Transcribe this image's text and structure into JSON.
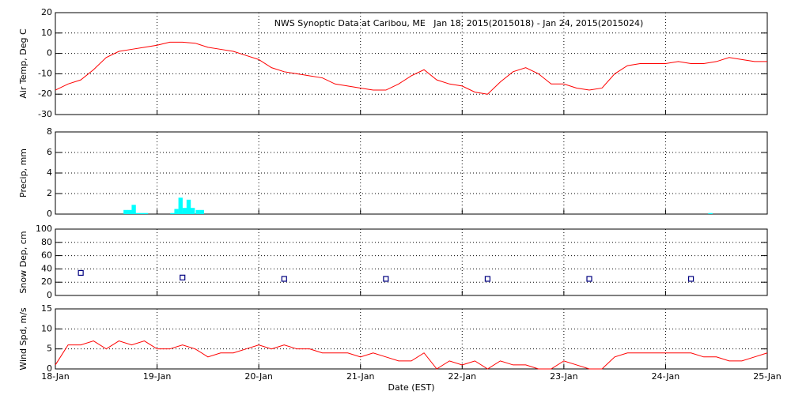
{
  "chart_data": [
    {
      "type": "line",
      "title": "NWS Synoptic Data at Caribou, ME   Jan 18, 2015(2015018) - Jan 24, 2015(2015024)",
      "ylabel": "Air Temp, Deg C",
      "color": "#ff0000",
      "x": [
        18,
        18.125,
        18.25,
        18.375,
        18.5,
        18.625,
        18.75,
        18.875,
        19,
        19.125,
        19.25,
        19.375,
        19.5,
        19.625,
        19.75,
        19.875,
        20,
        20.125,
        20.25,
        20.375,
        20.5,
        20.625,
        20.75,
        20.875,
        21,
        21.125,
        21.25,
        21.375,
        21.5,
        21.625,
        21.75,
        21.875,
        22,
        22.125,
        22.25,
        22.375,
        22.5,
        22.625,
        22.75,
        22.875,
        23,
        23.125,
        23.25,
        23.375,
        23.5,
        23.625,
        23.75,
        23.875,
        24,
        24.125,
        24.25,
        24.375,
        24.5,
        24.625,
        24.75,
        24.875,
        25
      ],
      "values": [
        -18,
        -15,
        -13,
        -8,
        -2,
        1,
        2,
        3,
        4,
        5.5,
        5.5,
        5,
        3,
        2,
        1,
        -1,
        -3,
        -7,
        -9,
        -10,
        -11,
        -12,
        -15,
        -16,
        -17,
        -18,
        -18,
        -15,
        -11,
        -8,
        -13,
        -15,
        -16,
        -19,
        -20,
        -14,
        -9,
        -7,
        -10,
        -15,
        -15,
        -17,
        -18,
        -17,
        -10,
        -6,
        -5,
        -5,
        -5,
        -4,
        -5,
        -5,
        -4,
        -2,
        -3,
        -4,
        -4
      ],
      "xlim": [
        18,
        25
      ],
      "xticks": [
        18,
        19,
        20,
        21,
        22,
        23,
        24,
        25
      ],
      "ylim": [
        -30,
        20
      ],
      "yticks": [
        -30,
        -20,
        -10,
        0,
        10,
        20
      ],
      "grid": true
    },
    {
      "type": "bar",
      "ylabel": "Precip, mm",
      "color": "#00ffff",
      "x": [
        18.67,
        18.71,
        18.75,
        18.79,
        18.83,
        18.87,
        19.13,
        19.17,
        19.21,
        19.25,
        19.29,
        19.33,
        19.38,
        19.42,
        24.42
      ],
      "values": [
        0.4,
        0.4,
        0.9,
        0.1,
        0.1,
        0.1,
        0.1,
        0.5,
        1.6,
        0.6,
        1.4,
        0.6,
        0.4,
        0.4,
        0.1
      ],
      "xlim": [
        18,
        25
      ],
      "xticks": [
        18,
        19,
        20,
        21,
        22,
        23,
        24,
        25
      ],
      "ylim": [
        0,
        8
      ],
      "yticks": [
        0,
        2,
        4,
        6,
        8
      ],
      "grid": true
    },
    {
      "type": "scatter",
      "ylabel": "Snow Dep, cm",
      "color": "#000080",
      "x": [
        18.25,
        19.25,
        20.25,
        21.25,
        22.25,
        23.25,
        24.25
      ],
      "values": [
        34,
        27,
        25,
        25,
        25,
        25,
        25
      ],
      "xlim": [
        18,
        25
      ],
      "xticks": [
        18,
        19,
        20,
        21,
        22,
        23,
        24,
        25
      ],
      "ylim": [
        0,
        100
      ],
      "yticks": [
        0,
        20,
        40,
        60,
        80,
        100
      ],
      "grid": true
    },
    {
      "type": "line",
      "ylabel": "Wind Spd, m/s",
      "xlabel": "Date (EST)",
      "color": "#ff0000",
      "x": [
        18,
        18.125,
        18.25,
        18.375,
        18.5,
        18.625,
        18.75,
        18.875,
        19,
        19.125,
        19.25,
        19.375,
        19.5,
        19.625,
        19.75,
        19.875,
        20,
        20.125,
        20.25,
        20.375,
        20.5,
        20.625,
        20.75,
        20.875,
        21,
        21.125,
        21.25,
        21.375,
        21.5,
        21.625,
        21.75,
        21.875,
        22,
        22.125,
        22.25,
        22.375,
        22.5,
        22.625,
        22.75,
        22.875,
        23,
        23.125,
        23.25,
        23.375,
        23.5,
        23.625,
        23.75,
        23.875,
        24,
        24.125,
        24.25,
        24.375,
        24.5,
        24.625,
        24.75,
        24.875,
        25
      ],
      "values": [
        1,
        6,
        6,
        7,
        5,
        7,
        6,
        7,
        5,
        5,
        6,
        5,
        3,
        4,
        4,
        5,
        6,
        5,
        6,
        5,
        5,
        4,
        4,
        4,
        3,
        4,
        3,
        2,
        2,
        4,
        0,
        2,
        1,
        2,
        0,
        2,
        1,
        1,
        0,
        0,
        2,
        1,
        0,
        0,
        3,
        4,
        4,
        4,
        4,
        4,
        4,
        3,
        3,
        2,
        2,
        3,
        4
      ],
      "xlim": [
        18,
        25
      ],
      "xticks": [
        {
          "value": 18,
          "label": "18-Jan"
        },
        {
          "value": 19,
          "label": "19-Jan"
        },
        {
          "value": 20,
          "label": "20-Jan"
        },
        {
          "value": 21,
          "label": "21-Jan"
        },
        {
          "value": 22,
          "label": "22-Jan"
        },
        {
          "value": 23,
          "label": "23-Jan"
        },
        {
          "value": 24,
          "label": "24-Jan"
        },
        {
          "value": 25,
          "label": "25-Jan"
        }
      ],
      "ylim": [
        0,
        15
      ],
      "yticks": [
        0,
        5,
        10,
        15
      ],
      "grid": true
    }
  ]
}
